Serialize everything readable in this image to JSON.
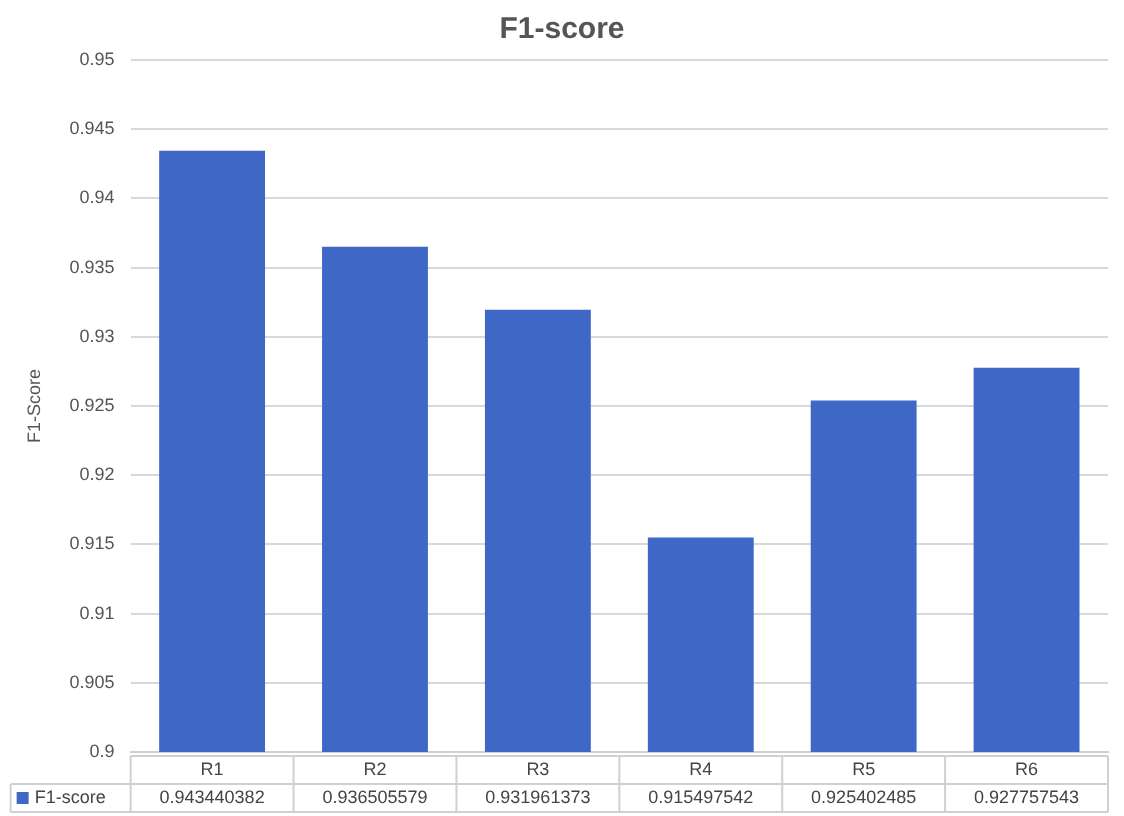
{
  "chart_data": {
    "type": "bar",
    "title": "F1-score",
    "ylabel": "F1-Score",
    "categories": [
      "R1",
      "R2",
      "R3",
      "R4",
      "R5",
      "R6"
    ],
    "series": [
      {
        "name": "F1-score",
        "color": "#3f68c6",
        "values": [
          0.943440382,
          0.936505579,
          0.931961373,
          0.915497542,
          0.925402485,
          0.927757543
        ]
      }
    ],
    "ylim": [
      0.9,
      0.95
    ],
    "yticks": [
      0.9,
      0.905,
      0.91,
      0.915,
      0.92,
      0.925,
      0.93,
      0.935,
      0.94,
      0.945,
      0.95
    ],
    "grid": "y",
    "legend": "bottom",
    "data_labels": true
  }
}
